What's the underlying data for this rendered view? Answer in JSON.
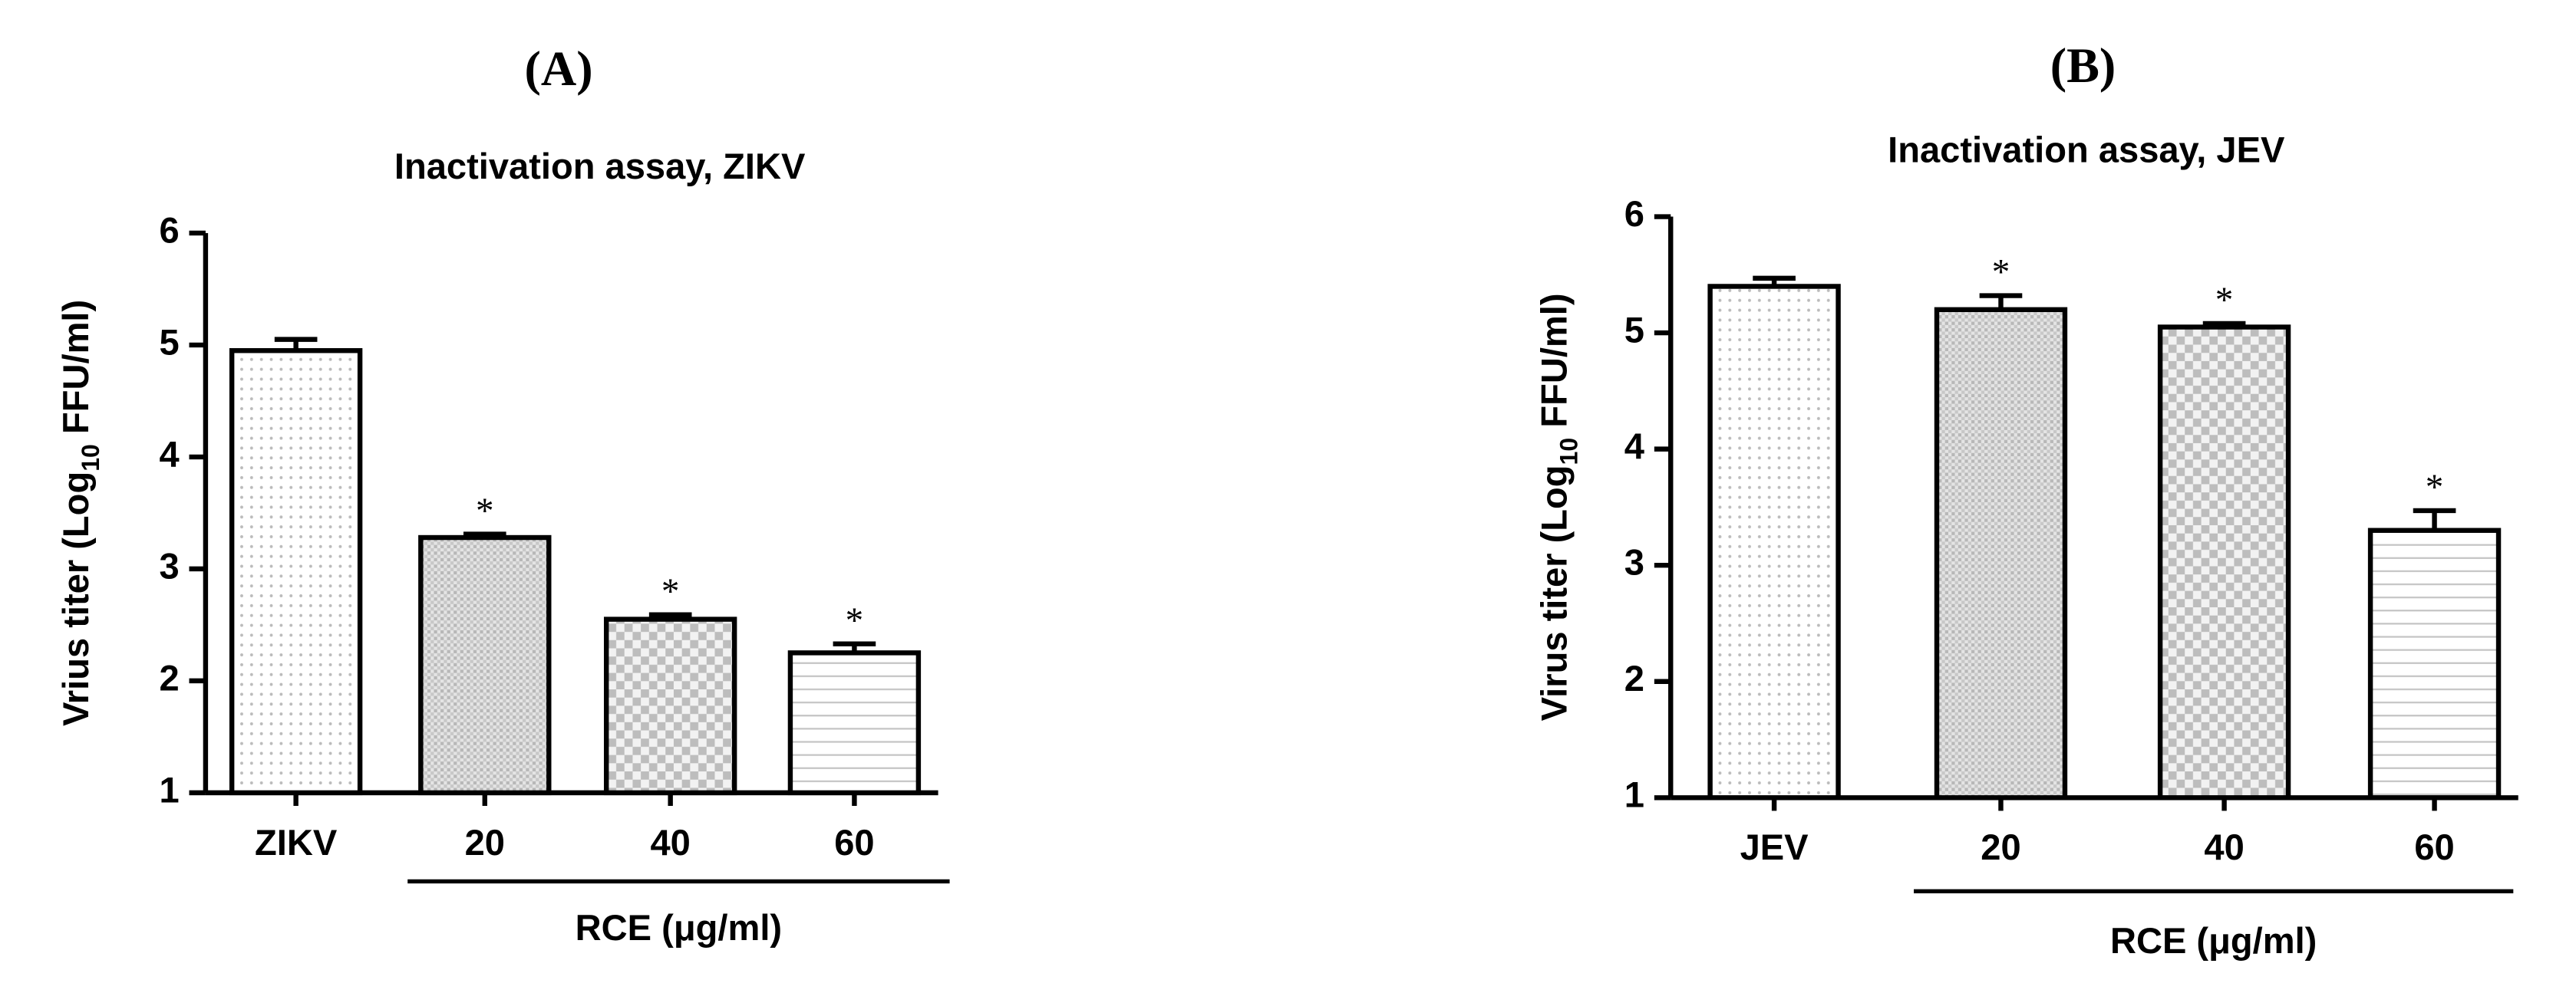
{
  "chart_data": [
    {
      "type": "bar",
      "panel": "(A)",
      "title": "Inactivation assay, ZIKV",
      "ylabel": [
        "Vrius titer (Log",
        "10",
        " FFU/ml)"
      ],
      "categories": [
        "ZIKV",
        "20",
        "40",
        "60"
      ],
      "values": [
        4.95,
        3.28,
        2.55,
        2.25
      ],
      "errors": [
        0.1,
        0.03,
        0.04,
        0.08
      ],
      "significance": [
        null,
        "*",
        "*",
        "*"
      ],
      "patterns": [
        "dots",
        "grid",
        "checker",
        "lines"
      ],
      "group_label": "RCE (μg/ml)",
      "ylim": [
        1,
        6
      ],
      "yticks": [
        1,
        2,
        3,
        4,
        5,
        6
      ]
    },
    {
      "type": "bar",
      "panel": "(B)",
      "title": "Inactivation assay, JEV",
      "ylabel": [
        "Virus titer (Log",
        "10",
        " FFU/ml)"
      ],
      "categories": [
        "JEV",
        "20",
        "40",
        "60"
      ],
      "values": [
        5.4,
        5.2,
        5.05,
        3.3
      ],
      "errors": [
        0.07,
        0.12,
        0.03,
        0.17
      ],
      "significance": [
        null,
        "*",
        "*",
        "*"
      ],
      "patterns": [
        "dots",
        "grid",
        "checker",
        "lines"
      ],
      "group_label": "RCE (μg/ml)",
      "ylim": [
        1,
        6
      ],
      "yticks": [
        1,
        2,
        3,
        4,
        5,
        6
      ]
    }
  ]
}
